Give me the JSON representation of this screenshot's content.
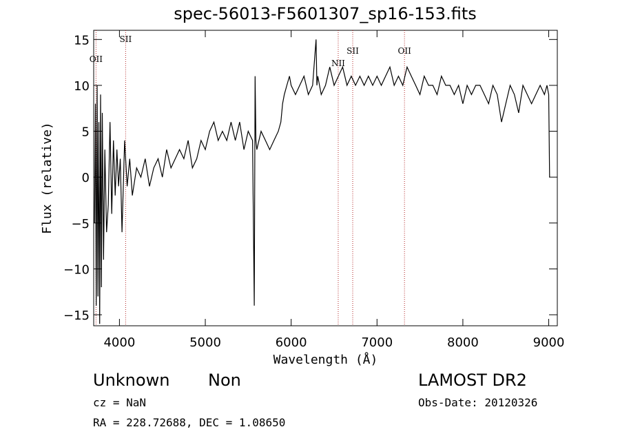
{
  "chart_data": {
    "type": "line",
    "title": "spec-56013-F5601307_sp16-153.fits",
    "xlabel": "Wavelength (Å)",
    "ylabel": "Flux (relative)",
    "xlim": [
      3700,
      9100
    ],
    "ylim": [
      -16.2,
      16
    ],
    "x_ticks": [
      4000,
      5000,
      6000,
      7000,
      8000,
      9000
    ],
    "y_ticks": [
      -15,
      -10,
      -5,
      0,
      5,
      10,
      15
    ],
    "grid": false,
    "legend": "none",
    "series": [
      {
        "x": [
          3710,
          3720,
          3730,
          3740,
          3750,
          3760,
          3770,
          3780,
          3790,
          3800,
          3815,
          3830,
          3850,
          3870,
          3890,
          3910,
          3930,
          3950,
          3970,
          3990,
          4010,
          4030,
          4060,
          4090,
          4120,
          4150,
          4200,
          4250,
          4300,
          4350,
          4400,
          4450,
          4500,
          4550,
          4600,
          4650,
          4700,
          4750,
          4800,
          4850,
          4900,
          4950,
          5000,
          5050,
          5100,
          5150,
          5200,
          5250,
          5300,
          5350,
          5400,
          5450,
          5500,
          5550,
          5570,
          5580,
          5590,
          5600,
          5650,
          5700,
          5750,
          5800,
          5850,
          5880,
          5900,
          5920,
          5950,
          5980,
          6000,
          6050,
          6100,
          6150,
          6200,
          6250,
          6290,
          6300,
          6310,
          6350,
          6400,
          6450,
          6500,
          6550,
          6600,
          6650,
          6700,
          6750,
          6800,
          6850,
          6900,
          6950,
          7000,
          7050,
          7100,
          7150,
          7200,
          7250,
          7300,
          7350,
          7400,
          7450,
          7500,
          7550,
          7600,
          7650,
          7700,
          7750,
          7800,
          7850,
          7900,
          7950,
          8000,
          8050,
          8100,
          8150,
          8200,
          8250,
          8300,
          8350,
          8400,
          8450,
          8500,
          8550,
          8600,
          8650,
          8700,
          8750,
          8800,
          8850,
          8900,
          8950,
          8980,
          9000,
          9010
        ],
        "y": [
          -5,
          8,
          -14,
          10,
          -13,
          6,
          -16,
          9,
          -12,
          7,
          -9,
          3,
          -6,
          -3,
          6,
          -4,
          4,
          -2,
          3,
          -1,
          2,
          -6,
          4,
          -1,
          2,
          -2,
          1,
          0,
          2,
          -1,
          1,
          2,
          0,
          3,
          1,
          2,
          3,
          2,
          4,
          1,
          2,
          4,
          3,
          5,
          6,
          4,
          5,
          4,
          6,
          4,
          6,
          3,
          5,
          4,
          -14,
          11,
          4,
          3,
          5,
          4,
          3,
          4,
          5,
          6,
          8,
          9,
          10,
          11,
          10,
          9,
          10,
          11,
          9,
          10,
          15,
          10,
          11,
          9,
          10,
          12,
          10,
          11,
          12,
          10,
          11,
          10,
          11,
          10,
          11,
          10,
          11,
          10,
          11,
          12,
          10,
          11,
          10,
          12,
          11,
          10,
          9,
          11,
          10,
          10,
          9,
          11,
          10,
          10,
          9,
          10,
          8,
          10,
          9,
          10,
          10,
          9,
          8,
          10,
          9,
          6,
          8,
          10,
          9,
          7,
          10,
          9,
          8,
          9,
          10,
          9,
          10,
          9,
          0
        ]
      }
    ],
    "lines": [
      {
        "label": "OII",
        "x": 3727
      },
      {
        "label": "SII",
        "x": 4072
      },
      {
        "label": "NII",
        "x": 6548
      },
      {
        "label": "SII",
        "x": 6717
      },
      {
        "label": "OII",
        "x": 7320
      }
    ]
  },
  "info": {
    "class": "Unknown",
    "subclass": "Non",
    "survey": "LAMOST DR2",
    "cz": "cz = NaN",
    "obs_date": "Obs-Date: 20120326",
    "radec": "RA = 228.72688, DEC =    1.08650"
  }
}
